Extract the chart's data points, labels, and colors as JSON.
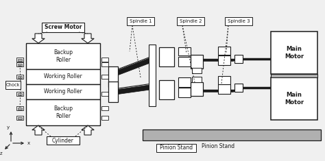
{
  "bg_color": "#f0f0f0",
  "line_color": "#1a1a1a",
  "gray_fill": "#b0b0b0",
  "white_fill": "#ffffff",
  "labels": {
    "screw_motor": "Screw Motor",
    "backup_roller_top": "Backup\nRoller",
    "working_roller_top": "Working Roller",
    "working_roller_bot": "Working Roller",
    "backup_roller_bot": "Backup\nRoller",
    "chock": "Chock",
    "cylinder": "Cylinder",
    "spindle1": "Spindle 1",
    "spindle2": "Spindle 2",
    "spindle3": "Spindle 3",
    "main_motor_top": "Main\nMotor",
    "main_motor_bot": "Main\nMotor",
    "pinion_stand": "Pinion Stand",
    "y_label": "y",
    "x_label": "x",
    "z_label": "z"
  },
  "figsize": [
    4.74,
    2.35
  ],
  "dpi": 100
}
